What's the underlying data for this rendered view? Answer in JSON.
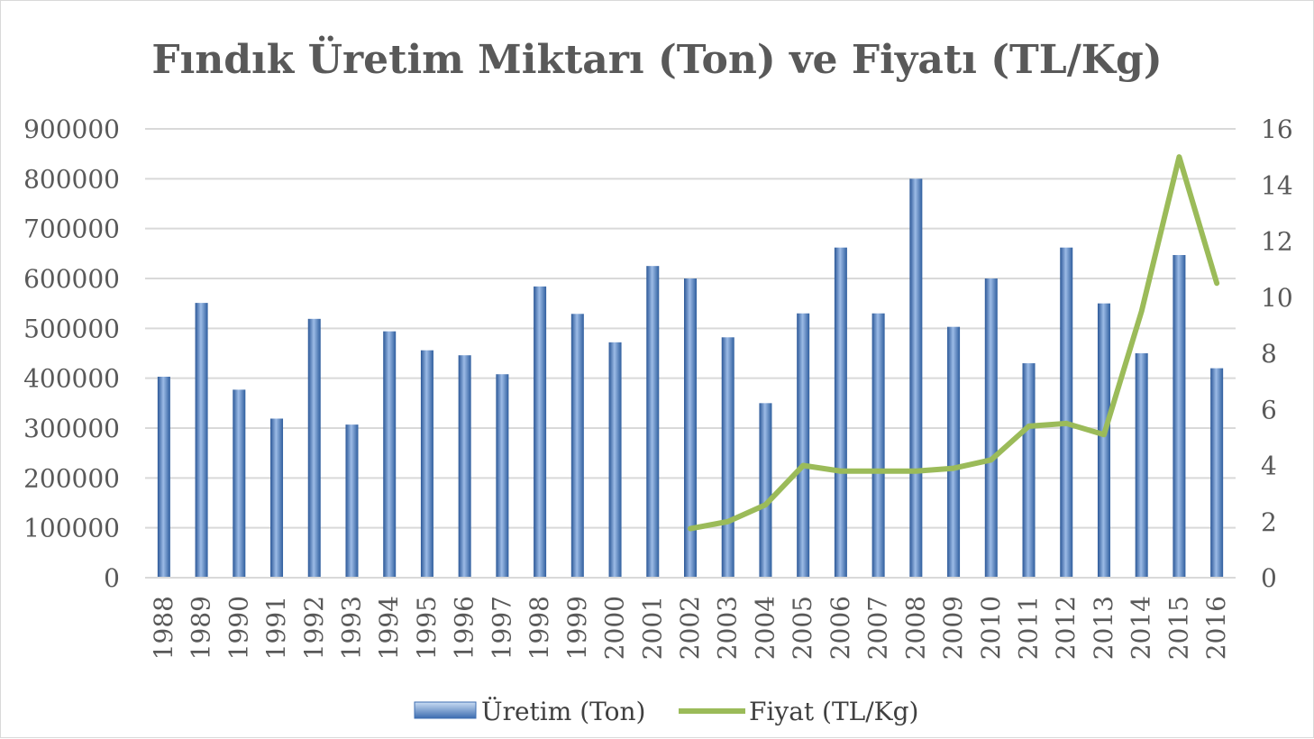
{
  "chart_data": {
    "type": "bar",
    "title": "Fındık Üretim Miktarı (Ton) ve Fiyatı (TL/Kg)",
    "categories": [
      "1988",
      "1989",
      "1990",
      "1991",
      "1992",
      "1993",
      "1994",
      "1995",
      "1996",
      "1997",
      "1998",
      "1999",
      "2000",
      "2001",
      "2002",
      "2003",
      "2004",
      "2005",
      "2006",
      "2007",
      "2008",
      "2009",
      "2010",
      "2011",
      "2012",
      "2013",
      "2014",
      "2015",
      "2016"
    ],
    "series": [
      {
        "name": "Üretim (Ton)",
        "type": "bar",
        "axis": "left",
        "color": "#4f81bd",
        "values": [
          403000,
          551000,
          377000,
          319000,
          519000,
          307000,
          494000,
          456000,
          446000,
          408000,
          584000,
          529000,
          472000,
          625000,
          600000,
          482000,
          350000,
          530000,
          662000,
          530000,
          800000,
          503000,
          600000,
          430000,
          662000,
          550000,
          450000,
          647000,
          420000
        ]
      },
      {
        "name": "Fiyat (TL/Kg)",
        "type": "line",
        "axis": "right",
        "color": "#9bbb59",
        "values": [
          null,
          null,
          null,
          null,
          null,
          null,
          null,
          null,
          null,
          null,
          null,
          null,
          null,
          null,
          1.75,
          2.0,
          2.6,
          4.0,
          3.8,
          3.8,
          3.8,
          3.9,
          4.2,
          5.4,
          5.5,
          5.1,
          9.5,
          15.0,
          10.5
        ]
      }
    ],
    "y_left": {
      "ylim": [
        0,
        900000
      ],
      "ticks": [
        "900000",
        "800000",
        "700000",
        "600000",
        "500000",
        "400000",
        "300000",
        "200000",
        "100000",
        "0"
      ]
    },
    "y_right": {
      "ylim": [
        0,
        16
      ],
      "ticks": [
        "16",
        "14",
        "12",
        "10",
        "8",
        "6",
        "4",
        "2",
        "0"
      ]
    },
    "grid": true,
    "legend_position": "bottom"
  }
}
